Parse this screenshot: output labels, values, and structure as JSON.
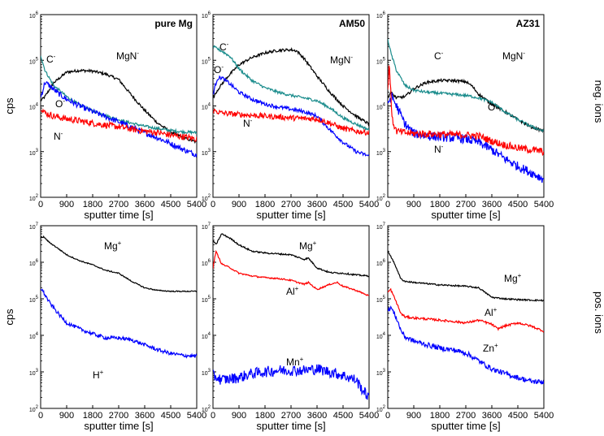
{
  "figure": {
    "row_labels": [
      "neg. ions",
      "pos. ions"
    ],
    "xlabel": "sputter time [s]",
    "ylabel": "cps"
  },
  "axis": {
    "x_ticks": [
      0,
      900,
      1800,
      2700,
      3600,
      4500,
      5400
    ],
    "x_tick_labels": [
      "0",
      "900",
      "1800",
      "2700",
      "3600",
      "4500",
      "5400"
    ],
    "y_tick_base": "10",
    "y_tick_exponents": [
      "2",
      "3",
      "4",
      "5",
      "6",
      "7"
    ]
  },
  "chart_data": [
    {
      "type": "line",
      "title": "pure Mg",
      "row": "neg. ions",
      "xlabel": "sputter time [s]",
      "ylabel": "cps",
      "yscale": "log",
      "xlim": [
        0,
        5400
      ],
      "ylim": [
        100,
        1000000
      ],
      "series": [
        {
          "name": "MgN",
          "charge": "-",
          "color": "#000000",
          "noise": 0.03,
          "x": [
            0,
            150,
            450,
            900,
            1350,
            1800,
            2250,
            2700,
            3150,
            3600,
            4050,
            4500,
            4950,
            5400
          ],
          "y": [
            13000,
            16000,
            32000,
            55000,
            60000,
            58000,
            50000,
            38000,
            17000,
            8000,
            4200,
            2700,
            2000,
            1600
          ]
        },
        {
          "name": "C",
          "charge": "-",
          "color": "#1a8c8c",
          "noise": 0.03,
          "x": [
            0,
            150,
            450,
            900,
            1350,
            1800,
            2250,
            2700,
            3150,
            3600,
            4050,
            4500,
            4950,
            5400
          ],
          "y": [
            130000,
            60000,
            28000,
            16000,
            10500,
            7800,
            6200,
            5000,
            4200,
            3600,
            3200,
            2900,
            2700,
            2600
          ]
        },
        {
          "name": "O",
          "charge": "-",
          "color": "#0000ff",
          "noise": 0.06,
          "x": [
            0,
            150,
            300,
            600,
            900,
            1350,
            1800,
            2250,
            2700,
            3150,
            3600,
            4050,
            4500,
            4950,
            5400
          ],
          "y": [
            15000,
            33000,
            28000,
            19000,
            14000,
            10000,
            7500,
            5800,
            4500,
            3400,
            2600,
            2000,
            1500,
            1100,
            850
          ]
        },
        {
          "name": "N",
          "charge": "-",
          "color": "#ff0000",
          "noise": 0.07,
          "x": [
            0,
            150,
            450,
            900,
            1350,
            1800,
            2250,
            2700,
            3150,
            3600,
            4050,
            4500,
            4950,
            5400
          ],
          "y": [
            9500,
            7000,
            6000,
            5200,
            4700,
            4200,
            3800,
            3500,
            3100,
            2800,
            2600,
            2300,
            2100,
            1900
          ]
        }
      ]
    },
    {
      "type": "line",
      "title": "AM50",
      "row": "neg. ions",
      "xlabel": "sputter time [s]",
      "ylabel": "cps",
      "yscale": "log",
      "xlim": [
        0,
        5400
      ],
      "ylim": [
        100,
        1000000
      ],
      "series": [
        {
          "name": "MgN",
          "charge": "-",
          "color": "#000000",
          "noise": 0.03,
          "x": [
            0,
            150,
            450,
            900,
            1350,
            1800,
            2250,
            2700,
            2900,
            3150,
            3600,
            4050,
            4500,
            4950,
            5400
          ],
          "y": [
            15000,
            22000,
            40000,
            80000,
            115000,
            145000,
            165000,
            170000,
            160000,
            110000,
            45000,
            20000,
            10000,
            6000,
            4000
          ]
        },
        {
          "name": "C",
          "charge": "-",
          "color": "#1a8c8c",
          "noise": 0.03,
          "x": [
            0,
            300,
            600,
            900,
            1350,
            1800,
            2250,
            2700,
            3150,
            3600,
            4050,
            4500,
            4950,
            5400
          ],
          "y": [
            200000,
            160000,
            120000,
            65000,
            36000,
            25000,
            20000,
            17000,
            15000,
            13000,
            9000,
            5500,
            4000,
            3000
          ]
        },
        {
          "name": "O",
          "charge": "-",
          "color": "#0000ff",
          "noise": 0.04,
          "x": [
            0,
            150,
            300,
            600,
            900,
            1350,
            1800,
            2250,
            2700,
            3150,
            3600,
            4050,
            4500,
            4950,
            5400
          ],
          "y": [
            18000,
            40000,
            42000,
            30000,
            20000,
            14000,
            11000,
            9500,
            8500,
            7500,
            6000,
            3000,
            1600,
            1000,
            800
          ]
        },
        {
          "name": "N",
          "charge": "-",
          "color": "#ff0000",
          "noise": 0.06,
          "x": [
            0,
            300,
            900,
            1800,
            2700,
            3150,
            3600,
            4050,
            4500,
            4950,
            5400
          ],
          "y": [
            8000,
            7000,
            6500,
            6000,
            5500,
            5300,
            5200,
            4200,
            3200,
            2800,
            2600
          ]
        }
      ]
    },
    {
      "type": "line",
      "title": "AZ31",
      "row": "neg. ions",
      "xlabel": "sputter time [s]",
      "ylabel": "cps",
      "yscale": "log",
      "xlim": [
        0,
        5400
      ],
      "ylim": [
        100,
        1000000
      ],
      "series": [
        {
          "name": "MgN",
          "charge": "-",
          "color": "#000000",
          "noise": 0.03,
          "x": [
            0,
            100,
            300,
            600,
            900,
            1350,
            1800,
            2250,
            2700,
            2900,
            3150,
            3600,
            4050,
            4500,
            4950,
            5400
          ],
          "y": [
            15000,
            20000,
            15000,
            16000,
            24000,
            33000,
            36000,
            36000,
            34000,
            28000,
            18000,
            11000,
            7500,
            5000,
            3500,
            2800
          ]
        },
        {
          "name": "C",
          "charge": "-",
          "color": "#1a8c8c",
          "noise": 0.03,
          "x": [
            0,
            100,
            300,
            600,
            900,
            1350,
            1800,
            2250,
            2700,
            3150,
            3600,
            4050,
            4500,
            4950,
            5400
          ],
          "y": [
            300000,
            150000,
            60000,
            28000,
            22000,
            20000,
            19000,
            18000,
            17000,
            15000,
            12000,
            7500,
            5000,
            3600,
            2800
          ]
        },
        {
          "name": "O",
          "charge": "-",
          "color": "#0000ff",
          "noise": 0.1,
          "x": [
            0,
            150,
            300,
            600,
            900,
            1350,
            1800,
            2250,
            2700,
            3150,
            3600,
            4050,
            4500,
            4950,
            5400
          ],
          "y": [
            12000,
            16000,
            10000,
            4000,
            2500,
            2200,
            2100,
            2000,
            1900,
            1600,
            1100,
            700,
            480,
            350,
            250
          ]
        },
        {
          "name": "N",
          "charge": "-",
          "color": "#ff0000",
          "noise": 0.08,
          "x": [
            0,
            50,
            150,
            300,
            600,
            900,
            1800,
            2700,
            3150,
            3600,
            4050,
            4500,
            4950,
            5400
          ],
          "y": [
            20000,
            100000,
            5000,
            2800,
            2600,
            2500,
            2400,
            2300,
            2200,
            1700,
            1400,
            1200,
            1100,
            1000
          ]
        }
      ]
    },
    {
      "type": "line",
      "title": "",
      "row": "pos. ions",
      "xlabel": "sputter time [s]",
      "ylabel": "cps",
      "yscale": "log",
      "xlim": [
        0,
        5400
      ],
      "ylim": [
        100,
        10000000
      ],
      "series": [
        {
          "name": "Mg",
          "charge": "+",
          "color": "#000000",
          "noise": 0.015,
          "x": [
            0,
            100,
            300,
            600,
            900,
            1350,
            1800,
            2250,
            2700,
            3150,
            3600,
            4050,
            4500,
            4950,
            5400
          ],
          "y": [
            4500000,
            5000000,
            3500000,
            2400000,
            1600000,
            1100000,
            850000,
            600000,
            500000,
            300000,
            200000,
            170000,
            160000,
            160000,
            160000
          ]
        },
        {
          "name": "H",
          "charge": "+",
          "color": "#0000ff",
          "noise": 0.05,
          "x": [
            0,
            100,
            300,
            600,
            900,
            1350,
            1800,
            2250,
            2700,
            3150,
            3600,
            4050,
            4500,
            4950,
            5400
          ],
          "y": [
            200000,
            150000,
            80000,
            40000,
            22000,
            15000,
            11000,
            8500,
            8500,
            7500,
            5500,
            4000,
            3200,
            2800,
            2700
          ]
        }
      ]
    },
    {
      "type": "line",
      "title": "",
      "row": "pos. ions",
      "xlabel": "sputter time [s]",
      "ylabel": "cps",
      "yscale": "log",
      "xlim": [
        0,
        5400
      ],
      "ylim": [
        100,
        10000000
      ],
      "series": [
        {
          "name": "Mg",
          "charge": "+",
          "color": "#000000",
          "noise": 0.02,
          "x": [
            0,
            100,
            300,
            600,
            900,
            1350,
            1800,
            2250,
            2700,
            3150,
            3300,
            3600,
            4050,
            4500,
            4950,
            5400
          ],
          "y": [
            4000000,
            3000000,
            6000000,
            4500000,
            3000000,
            2000000,
            1800000,
            1700000,
            1600000,
            1200000,
            1300000,
            700000,
            520000,
            500000,
            450000,
            420000
          ]
        },
        {
          "name": "Al",
          "charge": "+",
          "color": "#ff0000",
          "noise": 0.02,
          "x": [
            0,
            100,
            300,
            600,
            900,
            1350,
            1800,
            2250,
            2700,
            3150,
            3300,
            3600,
            4050,
            4300,
            4500,
            4950,
            5400
          ],
          "y": [
            700000,
            2000000,
            900000,
            700000,
            500000,
            420000,
            380000,
            360000,
            320000,
            250000,
            280000,
            180000,
            250000,
            280000,
            220000,
            170000,
            120000
          ]
        },
        {
          "name": "Mn",
          "charge": "+",
          "color": "#0000ff",
          "noise": 0.15,
          "x": [
            0,
            300,
            900,
            1350,
            1800,
            2250,
            2700,
            3150,
            3600,
            4050,
            4500,
            4950,
            5200,
            5400
          ],
          "y": [
            800,
            600,
            700,
            900,
            1000,
            1100,
            1100,
            1100,
            1200,
            1000,
            800,
            600,
            300,
            200
          ]
        }
      ]
    },
    {
      "type": "line",
      "title": "",
      "row": "pos. ions",
      "xlabel": "sputter time [s]",
      "ylabel": "cps",
      "yscale": "log",
      "xlim": [
        0,
        5400
      ],
      "ylim": [
        100,
        10000000
      ],
      "series": [
        {
          "name": "Mg",
          "charge": "+",
          "color": "#000000",
          "noise": 0.02,
          "x": [
            0,
            100,
            300,
            450,
            600,
            900,
            1350,
            1800,
            2250,
            2700,
            3150,
            3600,
            4050,
            4500,
            4950,
            5400
          ],
          "y": [
            2000000,
            1500000,
            700000,
            350000,
            300000,
            280000,
            260000,
            240000,
            230000,
            220000,
            200000,
            110000,
            100000,
            95000,
            92000,
            90000
          ]
        },
        {
          "name": "Al",
          "charge": "+",
          "color": "#ff0000",
          "noise": 0.03,
          "x": [
            0,
            100,
            300,
            450,
            600,
            900,
            1350,
            1800,
            2250,
            2700,
            3150,
            3600,
            3800,
            4050,
            4500,
            4950,
            5400
          ],
          "y": [
            150000,
            180000,
            80000,
            40000,
            32000,
            30000,
            28000,
            26000,
            24000,
            22000,
            26000,
            20000,
            15000,
            18000,
            22000,
            18000,
            13000
          ]
        },
        {
          "name": "Zn",
          "charge": "+",
          "color": "#0000ff",
          "noise": 0.07,
          "x": [
            0,
            100,
            300,
            450,
            600,
            900,
            1350,
            1800,
            2250,
            2700,
            3150,
            3600,
            4050,
            4500,
            4950,
            5400
          ],
          "y": [
            45000,
            60000,
            30000,
            14000,
            9000,
            7000,
            5500,
            4500,
            4000,
            3300,
            2000,
            1200,
            900,
            700,
            550,
            520
          ]
        }
      ]
    }
  ]
}
